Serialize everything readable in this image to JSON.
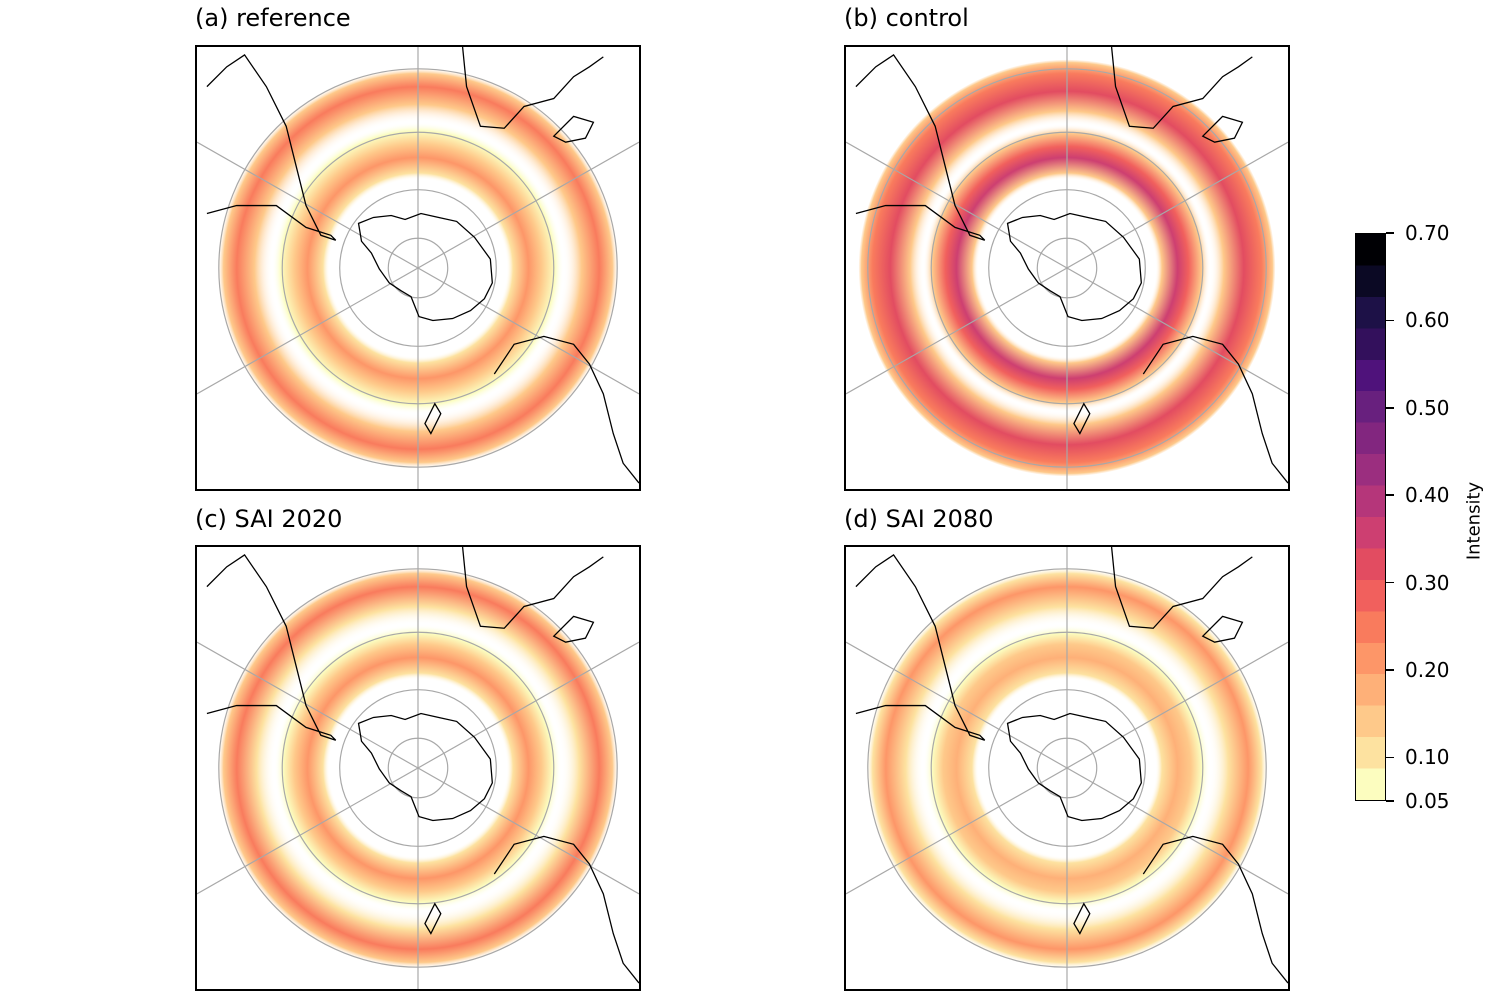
{
  "panels": [
    {
      "id": "a",
      "title": "(a) reference"
    },
    {
      "id": "b",
      "title": "(b) control"
    },
    {
      "id": "c",
      "title": "(c) SAI 2020"
    },
    {
      "id": "d",
      "title": "(d) SAI 2080"
    }
  ],
  "colorbar": {
    "label": "Intensity",
    "min": 0.05,
    "max": 0.7,
    "ticks": [
      {
        "value": 0.7,
        "label": "0.70"
      },
      {
        "value": 0.6,
        "label": "0.60"
      },
      {
        "value": 0.5,
        "label": "0.50"
      },
      {
        "value": 0.4,
        "label": "0.40"
      },
      {
        "value": 0.3,
        "label": "0.30"
      },
      {
        "value": 0.2,
        "label": "0.20"
      },
      {
        "value": 0.1,
        "label": "0.10"
      },
      {
        "value": 0.05,
        "label": "0.05"
      }
    ],
    "colormap": "magma_r",
    "colors": [
      "#fcfdbf",
      "#fde2a0",
      "#fec98a",
      "#feb078",
      "#fd9668",
      "#f97b5d",
      "#f1605d",
      "#e24c61",
      "#cd3f71",
      "#b5367a",
      "#9b2e7f",
      "#82267f",
      "#68207e",
      "#4f127b",
      "#33105c",
      "#1d1147",
      "#0b0924",
      "#000004"
    ]
  }
}
